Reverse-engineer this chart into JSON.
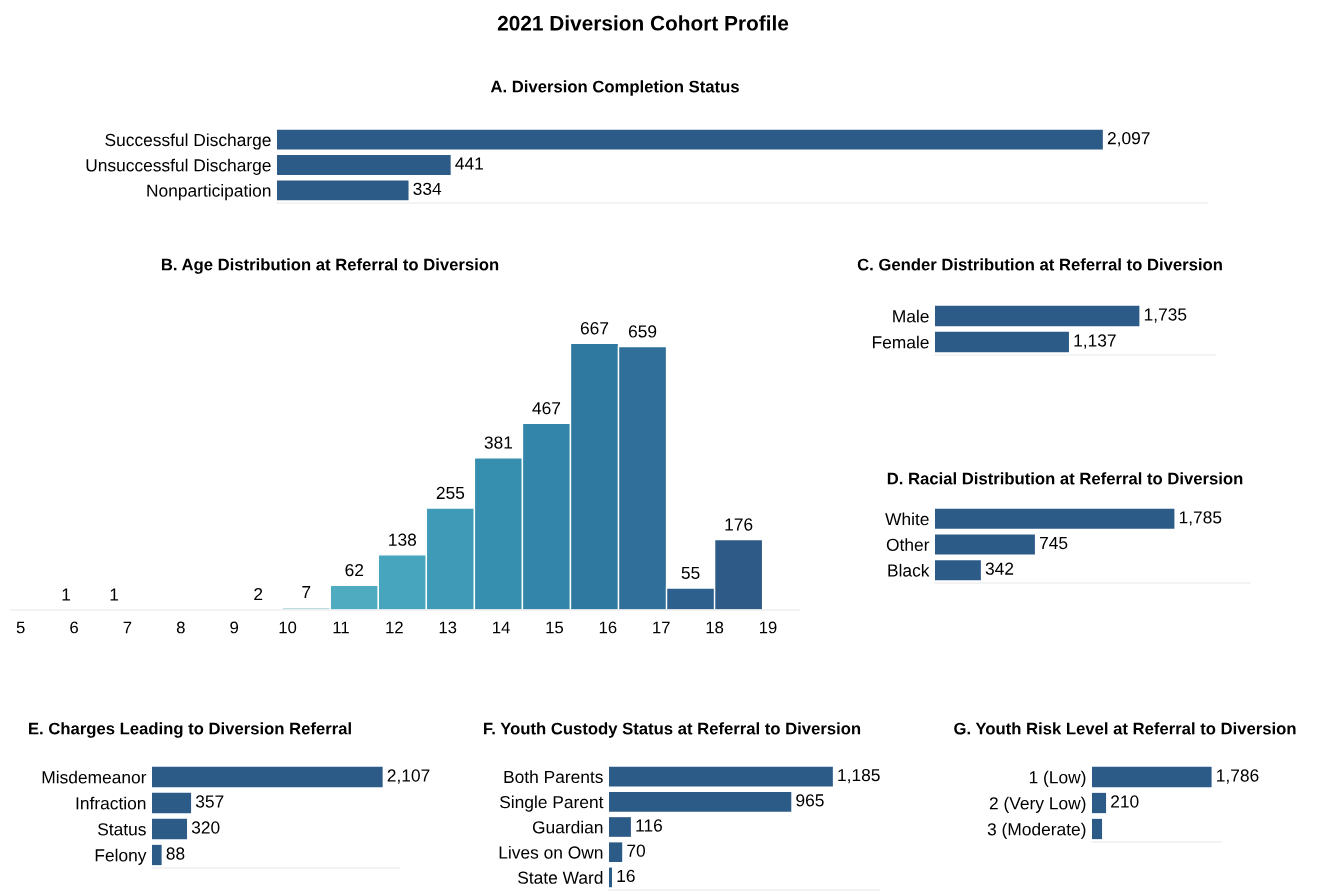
{
  "chart_data": [
    {
      "type": "bar",
      "orientation": "horizontal",
      "title": "2021 Diversion Cohort Profile",
      "subtitle": "A. Diversion Completion Status",
      "categories": [
        "Successful Discharge",
        "Unsuccessful Discharge",
        "Nonparticipation"
      ],
      "values": [
        2097,
        441,
        334
      ],
      "value_labels": [
        "2,097",
        "441",
        "334"
      ],
      "color": "#2d5b88"
    },
    {
      "type": "bar",
      "title": "B. Age Distribution at Referral to Diversion",
      "x": [
        5.85,
        6.75,
        7.65,
        8.55,
        9.45,
        10.35,
        11.25,
        12.15,
        13.05,
        13.95,
        14.85,
        15.75,
        16.65,
        17.55,
        18.45
      ],
      "values": [
        1,
        1,
        null,
        null,
        2,
        7,
        62,
        138,
        255,
        381,
        467,
        667,
        659,
        55,
        176
      ],
      "colors": [
        "#d3e4e4",
        "#d3e4e4",
        "#d3e4e4",
        "#d3e4e4",
        "#cfe2e3",
        "#bcdde0",
        "#4fabc0",
        "#47a5bd",
        "#3e9ab7",
        "#378fb0",
        "#3386a9",
        "#2f79a0",
        "#2f6f99",
        "#2e608e",
        "#2d5a87"
      ],
      "data_labels": true,
      "xlim": [
        4.8,
        19.6
      ],
      "xticks": [
        5,
        6,
        7,
        8,
        9,
        10,
        11,
        12,
        13,
        14,
        15,
        16,
        17,
        18,
        19
      ],
      "tick_labels": "x"
    },
    {
      "type": "bar",
      "orientation": "horizontal",
      "title": "C. Gender Distribution at Referral to Diversion",
      "categories": [
        "Male",
        "Female"
      ],
      "values": [
        1735,
        1137
      ],
      "value_labels": [
        "1,735",
        "1,137"
      ],
      "color": "#2d5b88"
    },
    {
      "type": "bar",
      "orientation": "horizontal",
      "title": "D. Racial Distribution at Referral to Diversion",
      "categories": [
        "White",
        "Other",
        "Black"
      ],
      "values": [
        1785,
        745,
        342
      ],
      "value_labels": [
        "1,785",
        "745",
        "342"
      ],
      "color": "#2d5b88"
    },
    {
      "type": "bar",
      "orientation": "horizontal",
      "title": "E. Charges Leading to Diversion Referral",
      "categories": [
        "Misdemeanor",
        "Infraction",
        "Status",
        "Felony"
      ],
      "values": [
        2107,
        357,
        320,
        88
      ],
      "value_labels": [
        "2,107",
        "357",
        "320",
        "88"
      ],
      "color": "#2d5b88"
    },
    {
      "type": "bar",
      "orientation": "horizontal",
      "title": "F. Youth Custody Status at Referral to Diversion",
      "categories": [
        "Both Parents",
        "Single Parent",
        "Guardian",
        "Lives on Own",
        "State Ward"
      ],
      "values": [
        1185,
        965,
        116,
        70,
        16
      ],
      "value_labels": [
        "1,185",
        "965",
        "116",
        "70",
        "16"
      ],
      "color": "#2d5b88"
    },
    {
      "type": "bar",
      "orientation": "horizontal",
      "title": "G. Youth Risk Level at Referral to Diversion",
      "categories": [
        "1 (Low)",
        "2 (Very Low)",
        "3 (Moderate)"
      ],
      "values": [
        1786,
        210,
        150
      ],
      "value_labels": [
        "1,786",
        "210",
        null
      ],
      "color": "#2d5b88"
    }
  ]
}
